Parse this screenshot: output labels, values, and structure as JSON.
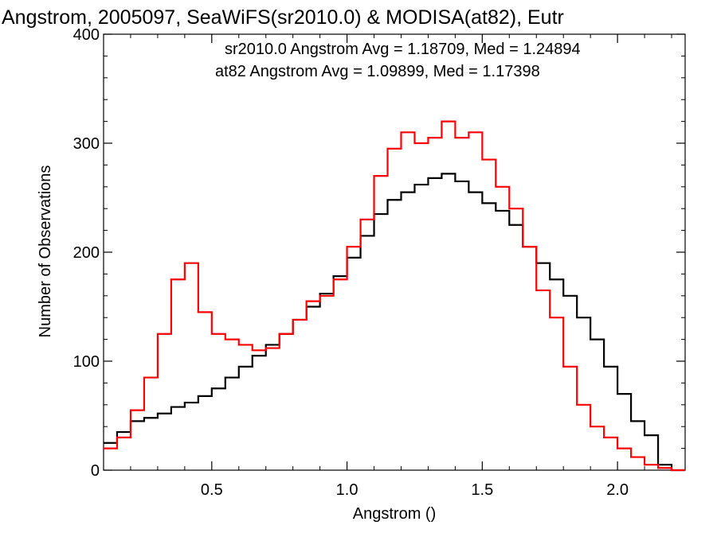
{
  "chart_data": {
    "type": "line",
    "title": "Angstrom, 2005097, SeaWiFS(sr2010.0) & MODISA(at82), Eutr",
    "xlabel": "Angstrom ()",
    "ylabel": "Number of Observations",
    "xlim": [
      0.1,
      2.25
    ],
    "ylim": [
      0,
      400
    ],
    "x_ticks": [
      0.5,
      1.0,
      1.5,
      2.0
    ],
    "x_tick_labels": [
      "0.5",
      "1.0",
      "1.5",
      "2.0"
    ],
    "y_ticks": [
      0,
      100,
      200,
      300,
      400
    ],
    "y_tick_labels": [
      "0",
      "100",
      "200",
      "300",
      "400"
    ],
    "grid": false,
    "step_style": "histogram",
    "annotations": [
      {
        "text": "sr2010.0 Angstrom Avg = 1.18709, Med = 1.24894",
        "color": "#000000"
      },
      {
        "text": "at82 Angstrom Avg = 1.09899, Med = 1.17398",
        "color": "#ff0000"
      }
    ],
    "series": [
      {
        "color": "#000000",
        "x": [
          0.1,
          0.15,
          0.2,
          0.25,
          0.3,
          0.35,
          0.4,
          0.45,
          0.5,
          0.55,
          0.6,
          0.65,
          0.7,
          0.75,
          0.8,
          0.85,
          0.9,
          0.95,
          1.0,
          1.05,
          1.1,
          1.15,
          1.2,
          1.25,
          1.3,
          1.35,
          1.4,
          1.45,
          1.5,
          1.55,
          1.6,
          1.65,
          1.7,
          1.75,
          1.8,
          1.85,
          1.9,
          1.95,
          2.0,
          2.05,
          2.1,
          2.15,
          2.2,
          2.25
        ],
        "values": [
          25,
          35,
          45,
          48,
          52,
          58,
          62,
          68,
          75,
          85,
          95,
          105,
          115,
          125,
          138,
          150,
          162,
          178,
          195,
          215,
          235,
          248,
          255,
          262,
          268,
          272,
          265,
          255,
          245,
          238,
          225,
          205,
          190,
          175,
          160,
          140,
          120,
          95,
          70,
          45,
          32,
          5,
          0,
          0
        ]
      },
      {
        "color": "#ff0000",
        "x": [
          0.1,
          0.15,
          0.2,
          0.25,
          0.3,
          0.35,
          0.4,
          0.45,
          0.5,
          0.55,
          0.6,
          0.65,
          0.7,
          0.75,
          0.8,
          0.85,
          0.9,
          0.95,
          1.0,
          1.05,
          1.1,
          1.15,
          1.2,
          1.25,
          1.3,
          1.35,
          1.4,
          1.45,
          1.5,
          1.55,
          1.6,
          1.65,
          1.7,
          1.75,
          1.8,
          1.85,
          1.9,
          1.95,
          2.0,
          2.05,
          2.1,
          2.15,
          2.2,
          2.25
        ],
        "values": [
          20,
          30,
          55,
          85,
          125,
          175,
          190,
          145,
          125,
          120,
          115,
          110,
          112,
          125,
          138,
          155,
          160,
          175,
          205,
          230,
          270,
          295,
          310,
          300,
          305,
          320,
          305,
          310,
          285,
          260,
          240,
          205,
          165,
          140,
          95,
          60,
          40,
          30,
          20,
          12,
          5,
          2,
          0,
          0
        ]
      }
    ]
  }
}
